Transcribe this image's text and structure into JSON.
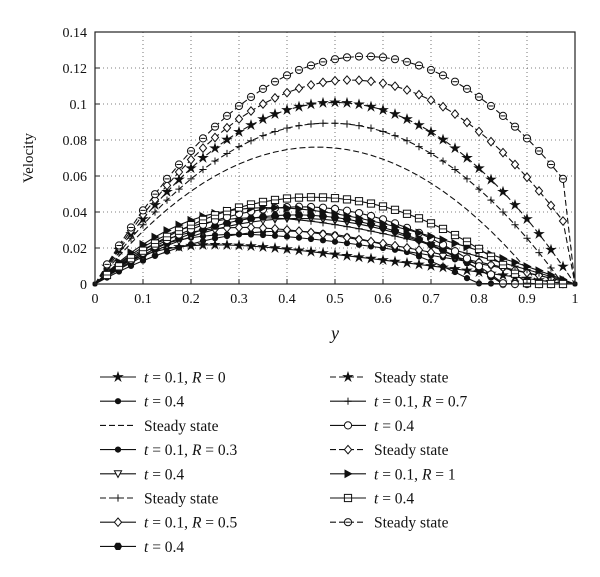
{
  "chart_data": {
    "type": "line",
    "xlabel": "y",
    "ylabel": "Velocity",
    "xlim": [
      0,
      1
    ],
    "ylim": [
      0,
      0.14
    ],
    "xticks": [
      "0",
      "0.1",
      "0.2",
      "0.3",
      "0.4",
      "0.5",
      "0.6",
      "0.7",
      "0.8",
      "0.9",
      "1"
    ],
    "yticks": [
      "0",
      "0.02",
      "0.04",
      "0.06",
      "0.08",
      "0.1",
      "0.12",
      "0.14"
    ],
    "grid": true,
    "legend_position": "below",
    "x": [
      0,
      0.025,
      0.05,
      0.075,
      0.1,
      0.125,
      0.15,
      0.175,
      0.2,
      0.225,
      0.25,
      0.275,
      0.3,
      0.325,
      0.35,
      0.375,
      0.4,
      0.425,
      0.45,
      0.475,
      0.5,
      0.525,
      0.55,
      0.575,
      0.6,
      0.625,
      0.65,
      0.675,
      0.7,
      0.725,
      0.75,
      0.775,
      0.8,
      0.825,
      0.85,
      0.875,
      0.9,
      0.925,
      0.95,
      0.975,
      1
    ],
    "series": [
      {
        "legend": "t = 0.1, R = 0",
        "marker": "star",
        "dashed": false,
        "values": [
          0,
          0.00555,
          0.00994,
          0.01339,
          0.01605,
          0.01807,
          0.01955,
          0.02059,
          0.02126,
          0.02163,
          0.02175,
          0.02167,
          0.02142,
          0.02105,
          0.02056,
          0.01999,
          0.01935,
          0.01867,
          0.01795,
          0.0172,
          0.01644,
          0.01566,
          0.01488,
          0.01409,
          0.01329,
          0.01249,
          0.01168,
          0.01087,
          0.01004,
          0.00921,
          0.00836,
          0.0075,
          0.00663,
          0.00575,
          0.00486,
          0.00396,
          0.00305,
          0.00214,
          0.00124,
          0.0004,
          0
        ]
      },
      {
        "legend": "t = 0.4",
        "marker": "dot",
        "dashed": false,
        "values": [
          0,
          0.00359,
          0.00694,
          0.01006,
          0.01294,
          0.01559,
          0.01801,
          0.02019,
          0.02214,
          0.02386,
          0.02535,
          0.0266,
          0.02763,
          0.02842,
          0.02898,
          0.02931,
          0.02941,
          0.02928,
          0.02892,
          0.02832,
          0.0275,
          0.02645,
          0.02517,
          0.02365,
          0.02191,
          0.01994,
          0.01773,
          0.0153,
          0.01264,
          0.00974,
          0.00662,
          0.00326,
          0.00033,
          0.00025,
          0.00018,
          0.00012,
          7e-05,
          3e-05,
          1e-05,
          2e-06,
          0
        ]
      },
      {
        "legend": "Steady state",
        "marker": "none",
        "dashed": true,
        "values": [
          0,
          0.008,
          0.01556,
          0.02267,
          0.02934,
          0.03556,
          0.04134,
          0.04667,
          0.05156,
          0.056,
          0.06,
          0.06356,
          0.06667,
          0.06934,
          0.07156,
          0.07334,
          0.07467,
          0.07556,
          0.076,
          0.076,
          0.07556,
          0.07467,
          0.07334,
          0.07156,
          0.06934,
          0.06667,
          0.06356,
          0.06,
          0.056,
          0.05156,
          0.04667,
          0.04134,
          0.03556,
          0.02934,
          0.02267,
          0.01556,
          0.008,
          0.0,
          0,
          0,
          0
        ]
      },
      {
        "legend": "t = 0.1, R = 0.3",
        "marker": "dot",
        "dashed": false,
        "values": [
          0,
          0.0057,
          0.0105,
          0.0145,
          0.0178,
          0.0205,
          0.0227,
          0.0244,
          0.0257,
          0.0266,
          0.0272,
          0.0275,
          0.0276,
          0.0275,
          0.0272,
          0.0268,
          0.0263,
          0.0257,
          0.025,
          0.0243,
          0.0235,
          0.0227,
          0.0218,
          0.0209,
          0.02,
          0.019,
          0.018,
          0.017,
          0.0159,
          0.0148,
          0.0137,
          0.0125,
          0.0113,
          0.0101,
          0.0088,
          0.0075,
          0.0061,
          0.0047,
          0.0032,
          0.0016,
          0
        ]
      },
      {
        "legend": "t = 0.4",
        "marker": "triangle-down",
        "dashed": false,
        "values": [
          0,
          0.0042,
          0.0081,
          0.0118,
          0.0152,
          0.0184,
          0.0213,
          0.0239,
          0.0263,
          0.0284,
          0.0303,
          0.0319,
          0.0333,
          0.0344,
          0.0353,
          0.0359,
          0.0363,
          0.0364,
          0.0363,
          0.0359,
          0.0353,
          0.0344,
          0.0333,
          0.0319,
          0.0303,
          0.0284,
          0.0263,
          0.0239,
          0.0213,
          0.0184,
          0.0152,
          0.0118,
          0.0081,
          0.0042,
          0.0,
          0,
          0,
          0,
          0,
          0,
          0
        ]
      },
      {
        "legend": "Steady state",
        "marker": "plus",
        "dashed": true,
        "values": [
          0,
          0.0089,
          0.0174,
          0.0254,
          0.0329,
          0.04,
          0.0466,
          0.0527,
          0.0584,
          0.0636,
          0.0683,
          0.0725,
          0.0763,
          0.0796,
          0.0824,
          0.0847,
          0.0866,
          0.088,
          0.0889,
          0.0893,
          0.0893,
          0.0889,
          0.088,
          0.0866,
          0.0847,
          0.0824,
          0.0796,
          0.0763,
          0.0725,
          0.0683,
          0.0636,
          0.0584,
          0.0527,
          0.0466,
          0.04,
          0.0329,
          0.0254,
          0.0174,
          0.0089,
          0.0,
          0
        ]
      },
      {
        "legend": "t = 0.1, R = 0.5",
        "marker": "diamond",
        "dashed": false,
        "values": [
          0,
          0.0059,
          0.011,
          0.0154,
          0.0192,
          0.0224,
          0.025,
          0.0271,
          0.0287,
          0.0299,
          0.0307,
          0.0312,
          0.0314,
          0.0314,
          0.0311,
          0.0307,
          0.0301,
          0.0294,
          0.0286,
          0.0277,
          0.0268,
          0.0258,
          0.0247,
          0.0236,
          0.0225,
          0.0213,
          0.0201,
          0.0189,
          0.0176,
          0.0163,
          0.015,
          0.0136,
          0.0122,
          0.0108,
          0.0093,
          0.0078,
          0.0063,
          0.0048,
          0.0032,
          0.0016,
          0
        ]
      },
      {
        "legend": "t = 0.4",
        "marker": "hex",
        "dashed": false,
        "values": [
          0,
          0.0044,
          0.0086,
          0.0125,
          0.0161,
          0.0195,
          0.0226,
          0.0254,
          0.0279,
          0.0302,
          0.0322,
          0.0339,
          0.0353,
          0.0365,
          0.0374,
          0.038,
          0.0383,
          0.0384,
          0.0382,
          0.0377,
          0.037,
          0.036,
          0.0347,
          0.0332,
          0.0314,
          0.0294,
          0.0271,
          0.0246,
          0.0218,
          0.0188,
          0.0155,
          0.012,
          0.0082,
          0.0042,
          0.0,
          0,
          0,
          0,
          0,
          0,
          0
        ]
      },
      {
        "legend": "Steady state",
        "marker": "star",
        "dashed": true,
        "values": [
          0,
          0.0097,
          0.019,
          0.0278,
          0.0361,
          0.0439,
          0.0512,
          0.058,
          0.0643,
          0.0701,
          0.0754,
          0.0802,
          0.0845,
          0.0883,
          0.0916,
          0.0944,
          0.0967,
          0.0985,
          0.0998,
          0.1006,
          0.1009,
          0.1006,
          0.0998,
          0.0985,
          0.0967,
          0.0944,
          0.0916,
          0.0883,
          0.0845,
          0.0802,
          0.0754,
          0.0701,
          0.0643,
          0.058,
          0.0512,
          0.0439,
          0.0361,
          0.0278,
          0.019,
          0.0097,
          0
        ]
      },
      {
        "legend": "t = 0.1, R = 0.7",
        "marker": "plus",
        "dashed": false,
        "values": [
          0,
          0.0061,
          0.0115,
          0.0163,
          0.0205,
          0.0242,
          0.0273,
          0.0299,
          0.032,
          0.0337,
          0.035,
          0.0359,
          0.0365,
          0.0368,
          0.0368,
          0.0366,
          0.0362,
          0.0356,
          0.0349,
          0.034,
          0.033,
          0.0319,
          0.0307,
          0.0294,
          0.028,
          0.0266,
          0.0251,
          0.0236,
          0.022,
          0.0204,
          0.0187,
          0.017,
          0.0153,
          0.0135,
          0.0117,
          0.0099,
          0.008,
          0.0061,
          0.0041,
          0.0021,
          0
        ]
      },
      {
        "legend": "t = 0.4",
        "marker": "circle",
        "dashed": false,
        "values": [
          0,
          0.0047,
          0.0092,
          0.0134,
          0.0173,
          0.021,
          0.0244,
          0.0275,
          0.0303,
          0.0329,
          0.0352,
          0.0372,
          0.0389,
          0.0403,
          0.0414,
          0.0422,
          0.0427,
          0.0429,
          0.0428,
          0.0424,
          0.0417,
          0.0407,
          0.0394,
          0.0378,
          0.0359,
          0.0337,
          0.0312,
          0.0284,
          0.0253,
          0.0219,
          0.0182,
          0.0142,
          0.0099,
          0.0053,
          0.0004,
          0,
          0,
          0,
          0,
          0,
          0
        ]
      },
      {
        "legend": "Steady state",
        "marker": "diamond",
        "dashed": true,
        "values": [
          0,
          0.0103,
          0.0202,
          0.0296,
          0.0385,
          0.0469,
          0.0548,
          0.0622,
          0.0691,
          0.0755,
          0.0814,
          0.0868,
          0.0917,
          0.0961,
          0.1,
          0.1034,
          0.1063,
          0.1087,
          0.1106,
          0.112,
          0.1129,
          0.1133,
          0.1132,
          0.1126,
          0.1115,
          0.1099,
          0.1078,
          0.1052,
          0.1021,
          0.0985,
          0.0944,
          0.0898,
          0.0847,
          0.0791,
          0.073,
          0.0664,
          0.0593,
          0.0517,
          0.0436,
          0.035,
          0
        ]
      },
      {
        "legend": "t = 0.1, R = 1",
        "marker": "triangle-right",
        "dashed": false,
        "values": [
          0,
          0.0064,
          0.0122,
          0.0174,
          0.022,
          0.0261,
          0.0297,
          0.0328,
          0.0354,
          0.0376,
          0.0393,
          0.0406,
          0.0415,
          0.0421,
          0.0424,
          0.0424,
          0.0422,
          0.0417,
          0.041,
          0.0401,
          0.0391,
          0.0379,
          0.0366,
          0.0351,
          0.0336,
          0.0319,
          0.0302,
          0.0284,
          0.0265,
          0.0246,
          0.0226,
          0.0206,
          0.0185,
          0.0164,
          0.0142,
          0.012,
          0.0097,
          0.0074,
          0.005,
          0.0025,
          0
        ]
      },
      {
        "legend": "t = 0.4",
        "marker": "square",
        "dashed": false,
        "values": [
          0,
          0.005,
          0.0098,
          0.0143,
          0.0185,
          0.0225,
          0.0262,
          0.0296,
          0.0327,
          0.0356,
          0.0382,
          0.0405,
          0.0425,
          0.0442,
          0.0456,
          0.0467,
          0.0475,
          0.048,
          0.0482,
          0.0481,
          0.0477,
          0.047,
          0.046,
          0.0447,
          0.0431,
          0.0412,
          0.039,
          0.0365,
          0.0337,
          0.0306,
          0.0272,
          0.0235,
          0.0195,
          0.0152,
          0.0106,
          0.0057,
          0.0005,
          0,
          0,
          0,
          0
        ]
      },
      {
        "legend": "Steady state",
        "marker": "circle-dot",
        "dashed": true,
        "values": [
          0,
          0.0109,
          0.0214,
          0.0314,
          0.0409,
          0.0499,
          0.0584,
          0.0664,
          0.0739,
          0.0809,
          0.0874,
          0.0934,
          0.0989,
          0.1039,
          0.1084,
          0.1124,
          0.1159,
          0.1189,
          0.1214,
          0.1234,
          0.1249,
          0.1259,
          0.1264,
          0.1264,
          0.1259,
          0.1249,
          0.1234,
          0.1214,
          0.1189,
          0.1159,
          0.1124,
          0.1084,
          0.1039,
          0.0989,
          0.0934,
          0.0874,
          0.0809,
          0.0739,
          0.0664,
          0.0584,
          0
        ]
      }
    ]
  }
}
